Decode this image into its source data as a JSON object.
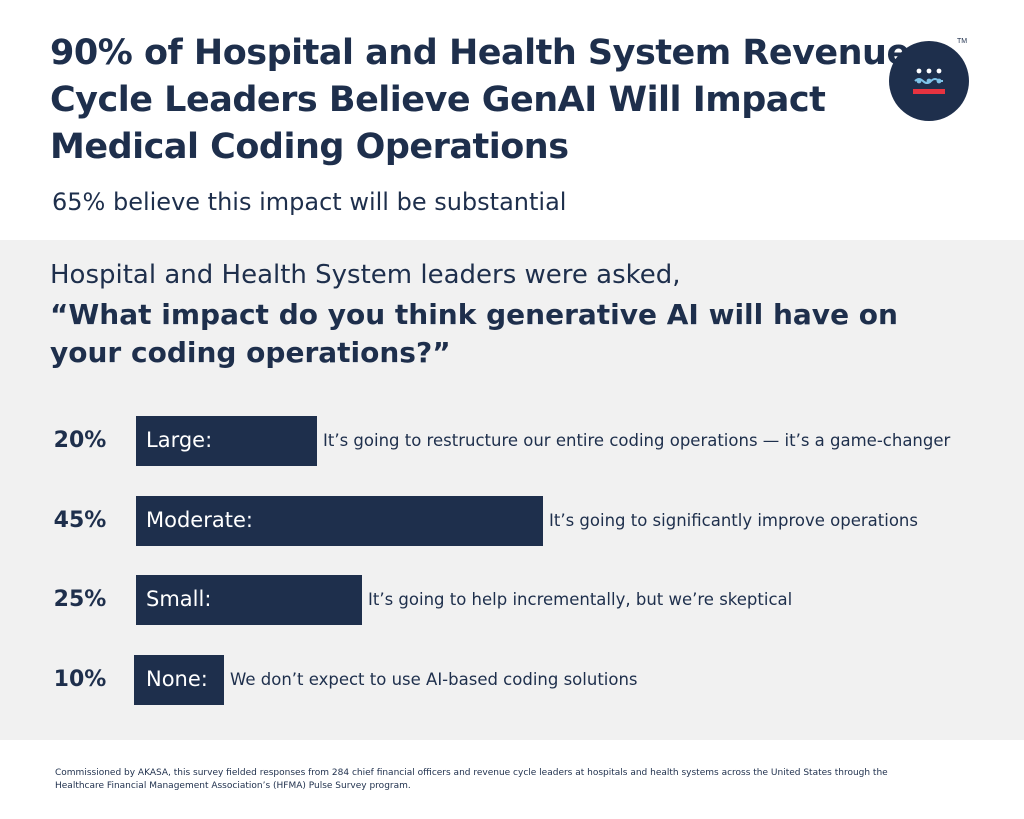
{
  "header": {
    "title": "90% of Hospital and Health System Revenue Cycle Leaders Believe GenAI Will Impact Medical Coding Operations",
    "subtitle": "65% believe this impact will be substantial"
  },
  "logo": {
    "name": "akasa-logo",
    "mark": "TM"
  },
  "question": {
    "intro": "Hospital and Health System leaders were asked,",
    "text": "“What impact do you think generative AI will have on your coding operations?”"
  },
  "colors": {
    "bar": "#1e2f4c",
    "panel": "#f1f1f1",
    "text": "#1e2f4c",
    "logo_red": "#e63340",
    "logo_blue": "#7fc3e8"
  },
  "chart_data": {
    "type": "bar",
    "orientation": "horizontal",
    "categories": [
      "Large:",
      "Moderate:",
      "Small:",
      "None:"
    ],
    "values": [
      20,
      45,
      25,
      10
    ],
    "value_labels": [
      "20%",
      "45%",
      "25%",
      "10%"
    ],
    "descriptions": [
      "It’s going to restructure our entire coding operations — it’s a game-changer",
      "It’s going to significantly improve operations",
      "It’s going to help incrementally, but we’re skeptical",
      "We don’t expect to use AI-based coding solutions"
    ],
    "unit": "%",
    "grid": false,
    "legend": "none"
  },
  "footnote": "Commissioned by AKASA, this survey fielded responses from 284 chief financial officers and revenue cycle leaders at hospitals and health systems across the United States through the Healthcare Financial Management Association’s (HFMA) Pulse Survey program."
}
